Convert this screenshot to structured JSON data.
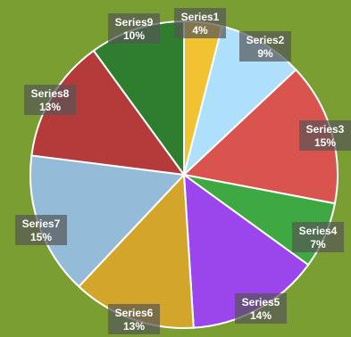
{
  "chart_data": {
    "type": "pie",
    "title": "",
    "start_angle_deg": 0,
    "direction": "clockwise",
    "slices": [
      {
        "name": "Series1",
        "value": 4,
        "label": "4%",
        "color": "#f1c232"
      },
      {
        "name": "Series2",
        "value": 9,
        "label": "9%",
        "color": "#aee0fb"
      },
      {
        "name": "Series3",
        "value": 15,
        "label": "15%",
        "color": "#d9534f"
      },
      {
        "name": "Series4",
        "value": 7,
        "label": "7%",
        "color": "#3ea842"
      },
      {
        "name": "Series5",
        "value": 14,
        "label": "14%",
        "color": "#9b45ec"
      },
      {
        "name": "Series6",
        "value": 13,
        "label": "13%",
        "color": "#d3a62b"
      },
      {
        "name": "Series7",
        "value": 15,
        "label": "15%",
        "color": "#94bcd9"
      },
      {
        "name": "Series8",
        "value": 13,
        "label": "13%",
        "color": "#b53b3b"
      },
      {
        "name": "Series9",
        "value": 10,
        "label": "10%",
        "color": "#2f7d2f"
      }
    ],
    "legend": "none",
    "background_color": "#7a9e32",
    "label_box_color": "#555555"
  }
}
